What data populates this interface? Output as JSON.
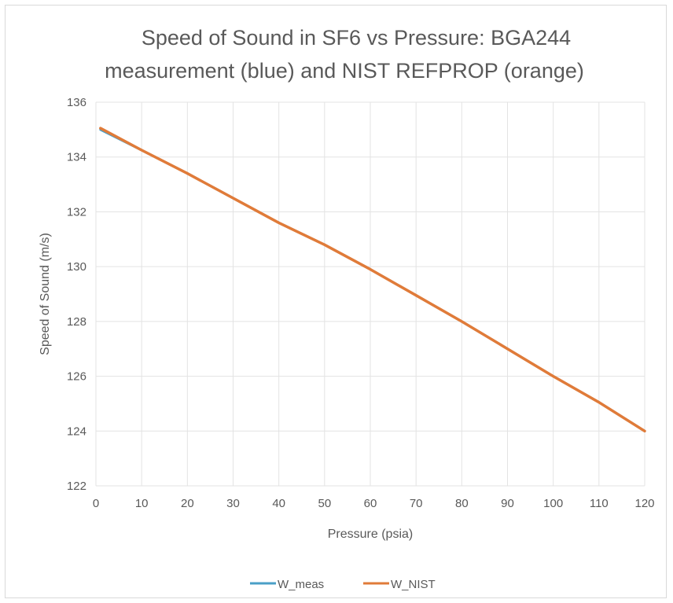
{
  "chart_data": {
    "type": "line",
    "title": [
      "Speed of Sound in SF6 vs Pressure: BGA244",
      "measurement (blue) and NIST REFPROP (orange)"
    ],
    "xlabel": "Pressure (psia)",
    "ylabel": "Speed of Sound (m/s)",
    "xlim": [
      0,
      120
    ],
    "ylim": [
      122,
      136
    ],
    "xticks": [
      0,
      10,
      20,
      30,
      40,
      50,
      60,
      70,
      80,
      90,
      100,
      110,
      120
    ],
    "yticks": [
      122,
      124,
      126,
      128,
      130,
      132,
      134,
      136
    ],
    "grid": true,
    "legend_position": "bottom",
    "series": [
      {
        "name": "W_meas",
        "color": "#4a9fc7",
        "x": [
          1,
          10,
          20,
          30,
          40,
          50,
          60,
          70,
          80,
          90,
          100,
          110,
          120
        ],
        "y": [
          135.0,
          134.25,
          133.4,
          132.5,
          131.6,
          130.8,
          129.9,
          128.95,
          128.0,
          127.0,
          126.0,
          125.05,
          124.0
        ]
      },
      {
        "name": "W_NIST",
        "color": "#e07b39",
        "x": [
          1,
          10,
          20,
          30,
          40,
          50,
          60,
          70,
          80,
          90,
          100,
          110,
          120
        ],
        "y": [
          135.05,
          134.25,
          133.4,
          132.5,
          131.6,
          130.8,
          129.9,
          128.95,
          128.0,
          127.0,
          126.0,
          125.05,
          124.0
        ]
      }
    ]
  }
}
